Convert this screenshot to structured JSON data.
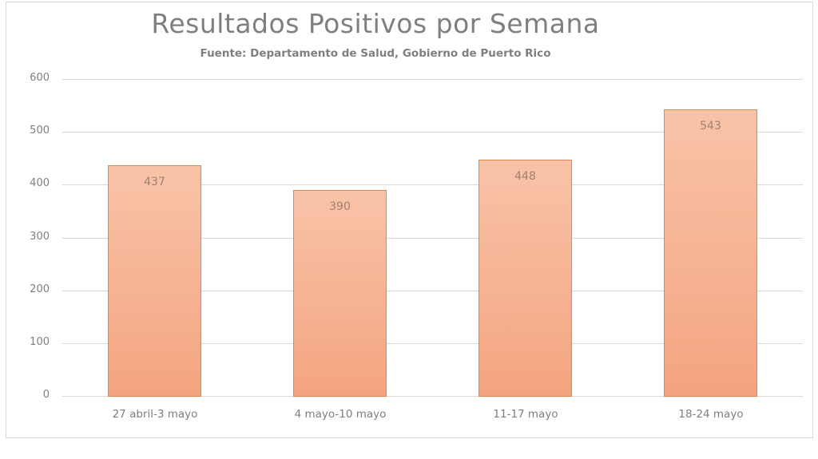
{
  "chart_data": {
    "type": "bar",
    "title": "Resultados Positivos por Semana",
    "subtitle": "Fuente: Departamento de Salud, Gobierno de Puerto Rico",
    "categories": [
      "27 abril-3 mayo",
      "4 mayo-10 mayo",
      "11-17 mayo",
      "18-24 mayo"
    ],
    "values": [
      437,
      390,
      448,
      543
    ],
    "data_labels": [
      "437",
      "390",
      "448",
      "543"
    ],
    "xlabel": "",
    "ylabel": "",
    "ylim": [
      0,
      600
    ],
    "yticks": [
      "0",
      "100",
      "200",
      "300",
      "400",
      "500",
      "600"
    ],
    "grid": true,
    "legend": null,
    "colors": {
      "bar_fill_top": "#f8c3a8",
      "bar_fill_bottom": "#f4a47e",
      "bar_border": "#e0884e",
      "text": "#7f7f7f",
      "gridline": "#d9d9d9"
    }
  }
}
